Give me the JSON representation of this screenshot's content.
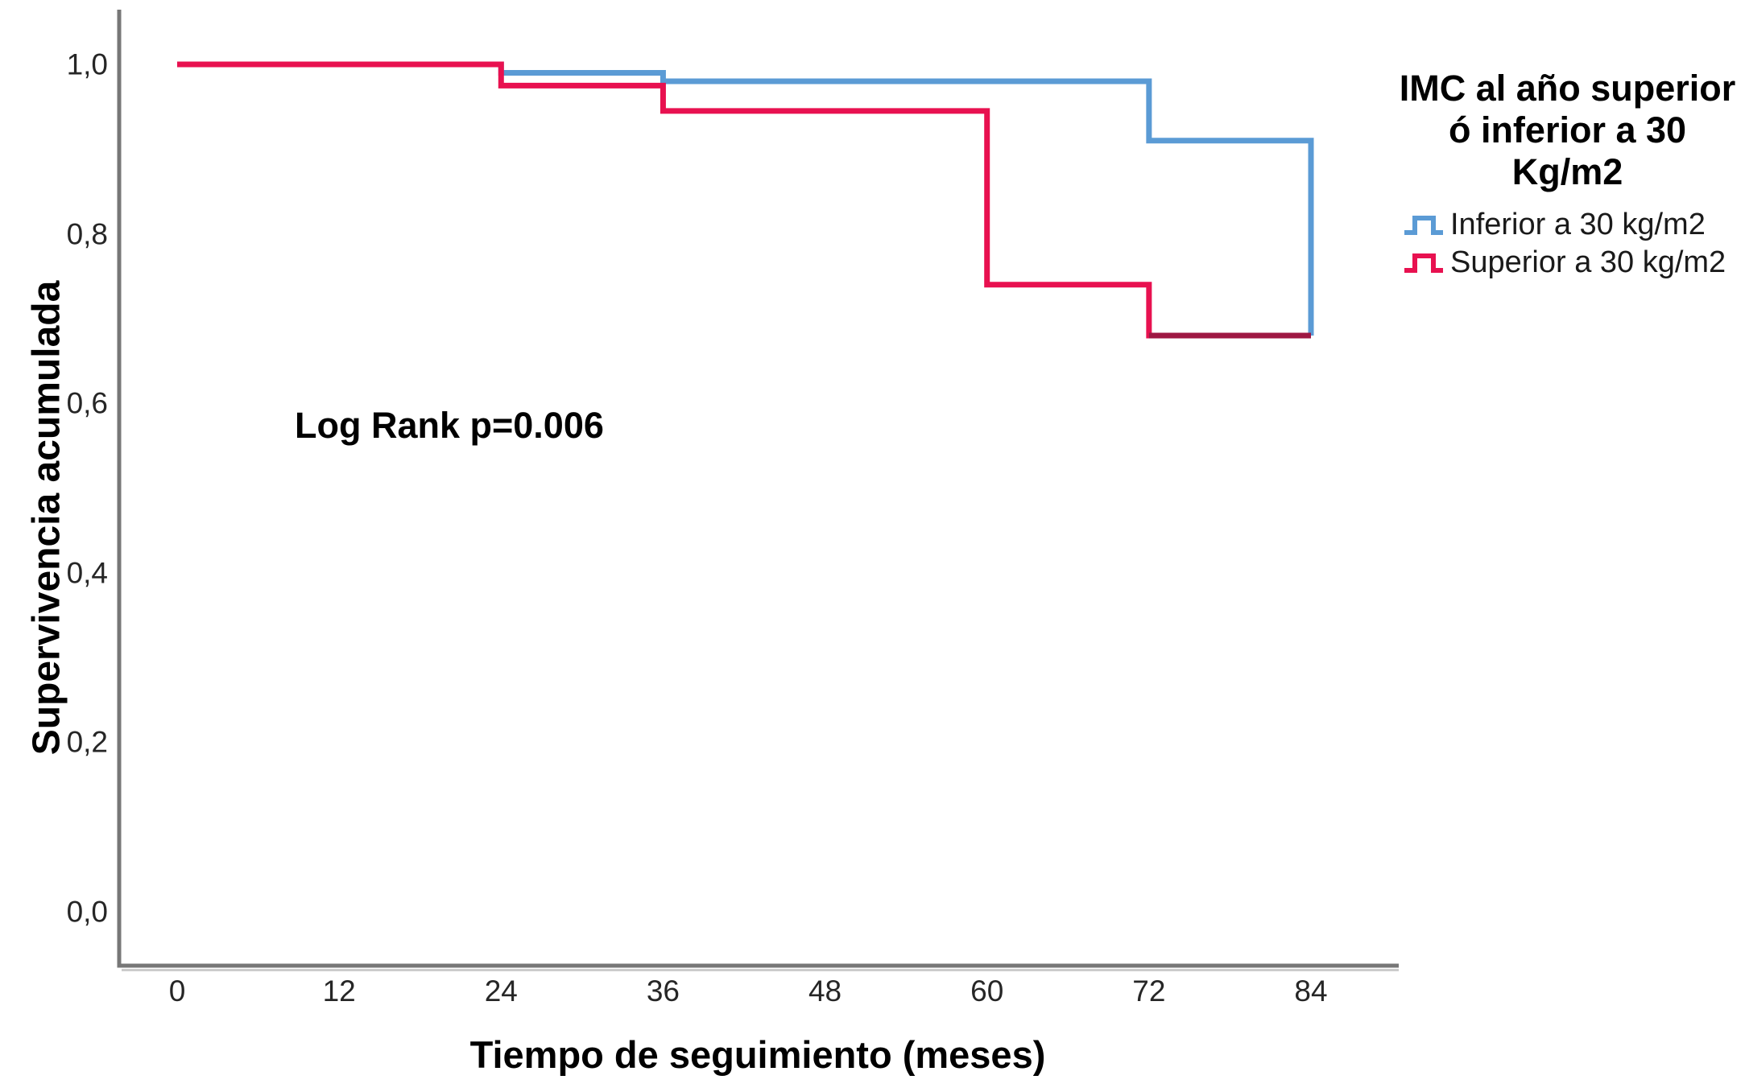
{
  "figure": {
    "annotation": "Log Rank p=0.006",
    "legend": {
      "title_line1": "IMC al año superior",
      "title_line2": "ó inferior a 30 Kg/m2",
      "entries": [
        {
          "label": "Inferior a 30 kg/m2",
          "color": "#5B9BD5"
        },
        {
          "label": "Superior a 30 kg/m2",
          "color": "#E81150"
        }
      ]
    },
    "colors": {
      "axis": "#777777",
      "axis_shadow": "#cccccc",
      "tick_text": "#262626",
      "overlap_dark_red": "#9E1843"
    }
  },
  "chart_data": {
    "type": "line",
    "subtype": "kaplan-meier-step",
    "title": "",
    "xlabel": "Tiempo de seguimiento (meses)",
    "ylabel": "Supervivencia acumulada",
    "x_ticks": [
      0,
      12,
      24,
      36,
      48,
      60,
      72,
      84
    ],
    "y_tick_labels": [
      "1,0",
      "0,8",
      "0,6",
      "0,4",
      "0,2",
      "0,0"
    ],
    "y_tick_values": [
      1.0,
      0.8,
      0.6,
      0.4,
      0.2,
      0.0
    ],
    "xlim": [
      0,
      84
    ],
    "ylim": [
      0.0,
      1.0
    ],
    "grid": false,
    "legend_position": "right",
    "annotation": "Log Rank p=0.006",
    "series": [
      {
        "name": "Inferior a 30 kg/m2",
        "color": "#5B9BD5",
        "steps": [
          [
            0,
            1.0
          ],
          [
            24,
            0.99
          ],
          [
            36,
            0.98
          ],
          [
            72,
            0.91
          ],
          [
            84,
            0.68
          ]
        ],
        "end_month": 84
      },
      {
        "name": "Superior a 30 kg/m2",
        "color": "#E81150",
        "steps": [
          [
            0,
            1.0
          ],
          [
            24,
            0.975
          ],
          [
            36,
            0.945
          ],
          [
            60,
            0.74
          ],
          [
            72,
            0.68
          ]
        ],
        "end_month": 84
      }
    ],
    "overlap_segment": {
      "month_from": 72,
      "month_to": 84,
      "value": 0.68,
      "color": "#9E1843"
    }
  }
}
